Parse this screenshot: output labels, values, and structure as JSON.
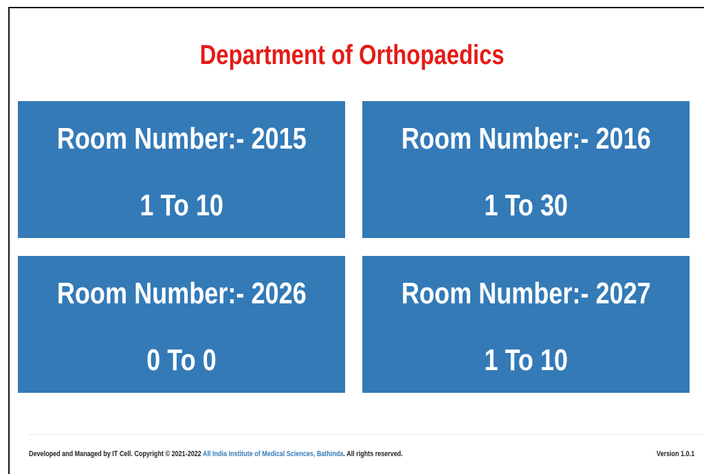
{
  "header": {
    "title": "Department of Orthopaedics"
  },
  "rooms": [
    {
      "label": "Room Number:- 2015",
      "range": "1 To 10"
    },
    {
      "label": "Room Number:- 2016",
      "range": "1 To 30"
    },
    {
      "label": "Room Number:- 2026",
      "range": "0 To 0"
    },
    {
      "label": "Room Number:- 2027",
      "range": "1 To 10"
    }
  ],
  "footer": {
    "prefix": "Developed and Managed by IT Cell. Copyright © 2021-2022 ",
    "link": "All India Institute of Medical Sciences, Bathinda",
    "suffix": ". All rights reserved.",
    "version": "Version 1.0.1"
  }
}
